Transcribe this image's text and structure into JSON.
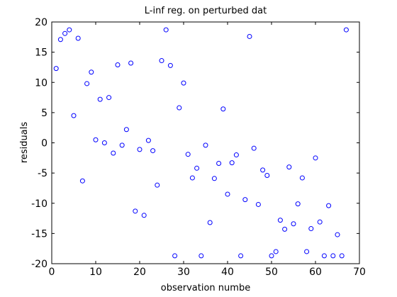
{
  "chart_data": {
    "type": "scatter",
    "title": "L-inf reg. on perturbed dat",
    "xlabel": "observation numbe",
    "ylabel": "residuals",
    "xlim": [
      0,
      70
    ],
    "ylim": [
      -20,
      20
    ],
    "xticks": [
      0,
      10,
      20,
      30,
      40,
      50,
      60,
      70
    ],
    "yticks": [
      -20,
      -15,
      -10,
      -5,
      0,
      5,
      10,
      15,
      20
    ],
    "grid": false,
    "marker": "circle-open",
    "series": [
      {
        "color": "#0000ff",
        "x": [
          1,
          2,
          3,
          4,
          5,
          6,
          7,
          8,
          9,
          10,
          11,
          12,
          13,
          14,
          15,
          16,
          17,
          18,
          19,
          20,
          21,
          22,
          23,
          24,
          25,
          26,
          27,
          28,
          29,
          30,
          31,
          32,
          33,
          34,
          35,
          36,
          37,
          38,
          39,
          40,
          41,
          42,
          43,
          44,
          45,
          46,
          47,
          48,
          49,
          50,
          51,
          52,
          53,
          54,
          55,
          56,
          57,
          58,
          59,
          60,
          61,
          62,
          63,
          64,
          65,
          66,
          67
        ],
        "y": [
          12.3,
          17.1,
          18.1,
          18.7,
          4.5,
          17.3,
          -6.3,
          9.8,
          11.7,
          0.5,
          7.2,
          0,
          7.5,
          -1.7,
          12.9,
          -0.4,
          2.2,
          13.2,
          -11.3,
          -1.1,
          -12,
          0.4,
          -1.3,
          -7,
          13.6,
          18.7,
          12.8,
          -18.7,
          5.8,
          9.9,
          -1.9,
          -5.8,
          -4.2,
          -18.7,
          -0.4,
          -13.2,
          -5.9,
          -3.4,
          5.6,
          -8.5,
          -3.3,
          -2,
          -18.7,
          -9.4,
          17.6,
          -0.9,
          -10.2,
          -4.5,
          -5.4,
          -18.7,
          -18,
          -12.8,
          -14.3,
          -4,
          -13.4,
          -10.1,
          -5.8,
          -18,
          -14.2,
          -2.5,
          -13.1,
          -18.7,
          -10.4,
          -18.7,
          -15.2,
          -18.7,
          18.7
        ]
      }
    ]
  }
}
